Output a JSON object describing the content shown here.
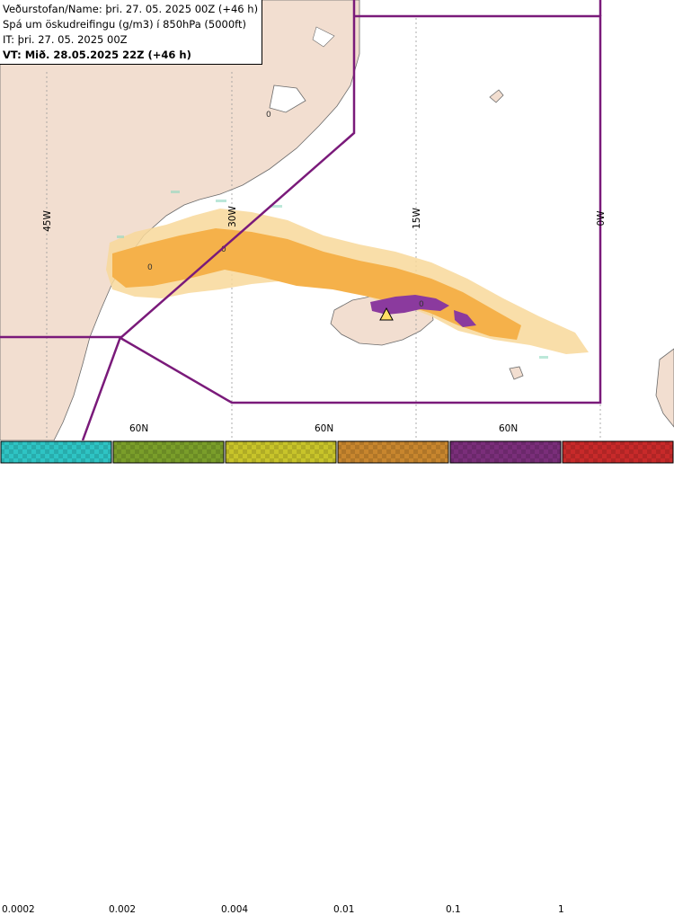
{
  "header": {
    "line1": "Veðurstofan/Name: þri. 27. 05. 2025 00Z (+46 h)",
    "line2": "Spá um öskudreifingu (g/m3) í 850hPa (5000ft)",
    "line3": "IT: þri. 27. 05. 2025 00Z",
    "line4": "VT: Mið. 28.05.2025 22Z (+46 h)"
  },
  "grid_labels": {
    "lon_45w": "45W",
    "lon_30w": "30W",
    "lon_15w": "15W",
    "lon_0w": "0W",
    "lat_60n_a": "60N",
    "lat_60n_b": "60N",
    "lat_60n_c": "60N"
  },
  "map_markers": {
    "contour_a": "0",
    "contour_b": "0",
    "contour_c": "0",
    "contour_d": "0"
  },
  "colors": {
    "land": "#f2ded0",
    "sea": "#ffffff",
    "boundary": "#7a1a7a",
    "ash_light": "#f5b74f",
    "ash_medium": "#e8a040",
    "ash_heavy": "#8b3a9e"
  },
  "legend": {
    "bins": [
      {
        "label": "0.0002",
        "color": "#2ec4c4"
      },
      {
        "label": "0.002",
        "color": "#7a9e2a"
      },
      {
        "label": "0.004",
        "color": "#c8c42a"
      },
      {
        "label": "0.01",
        "color": "#c8862e"
      },
      {
        "label": "0.1",
        "color": "#7a2e7a"
      },
      {
        "label": "1",
        "color": "#c82a2a"
      }
    ]
  }
}
